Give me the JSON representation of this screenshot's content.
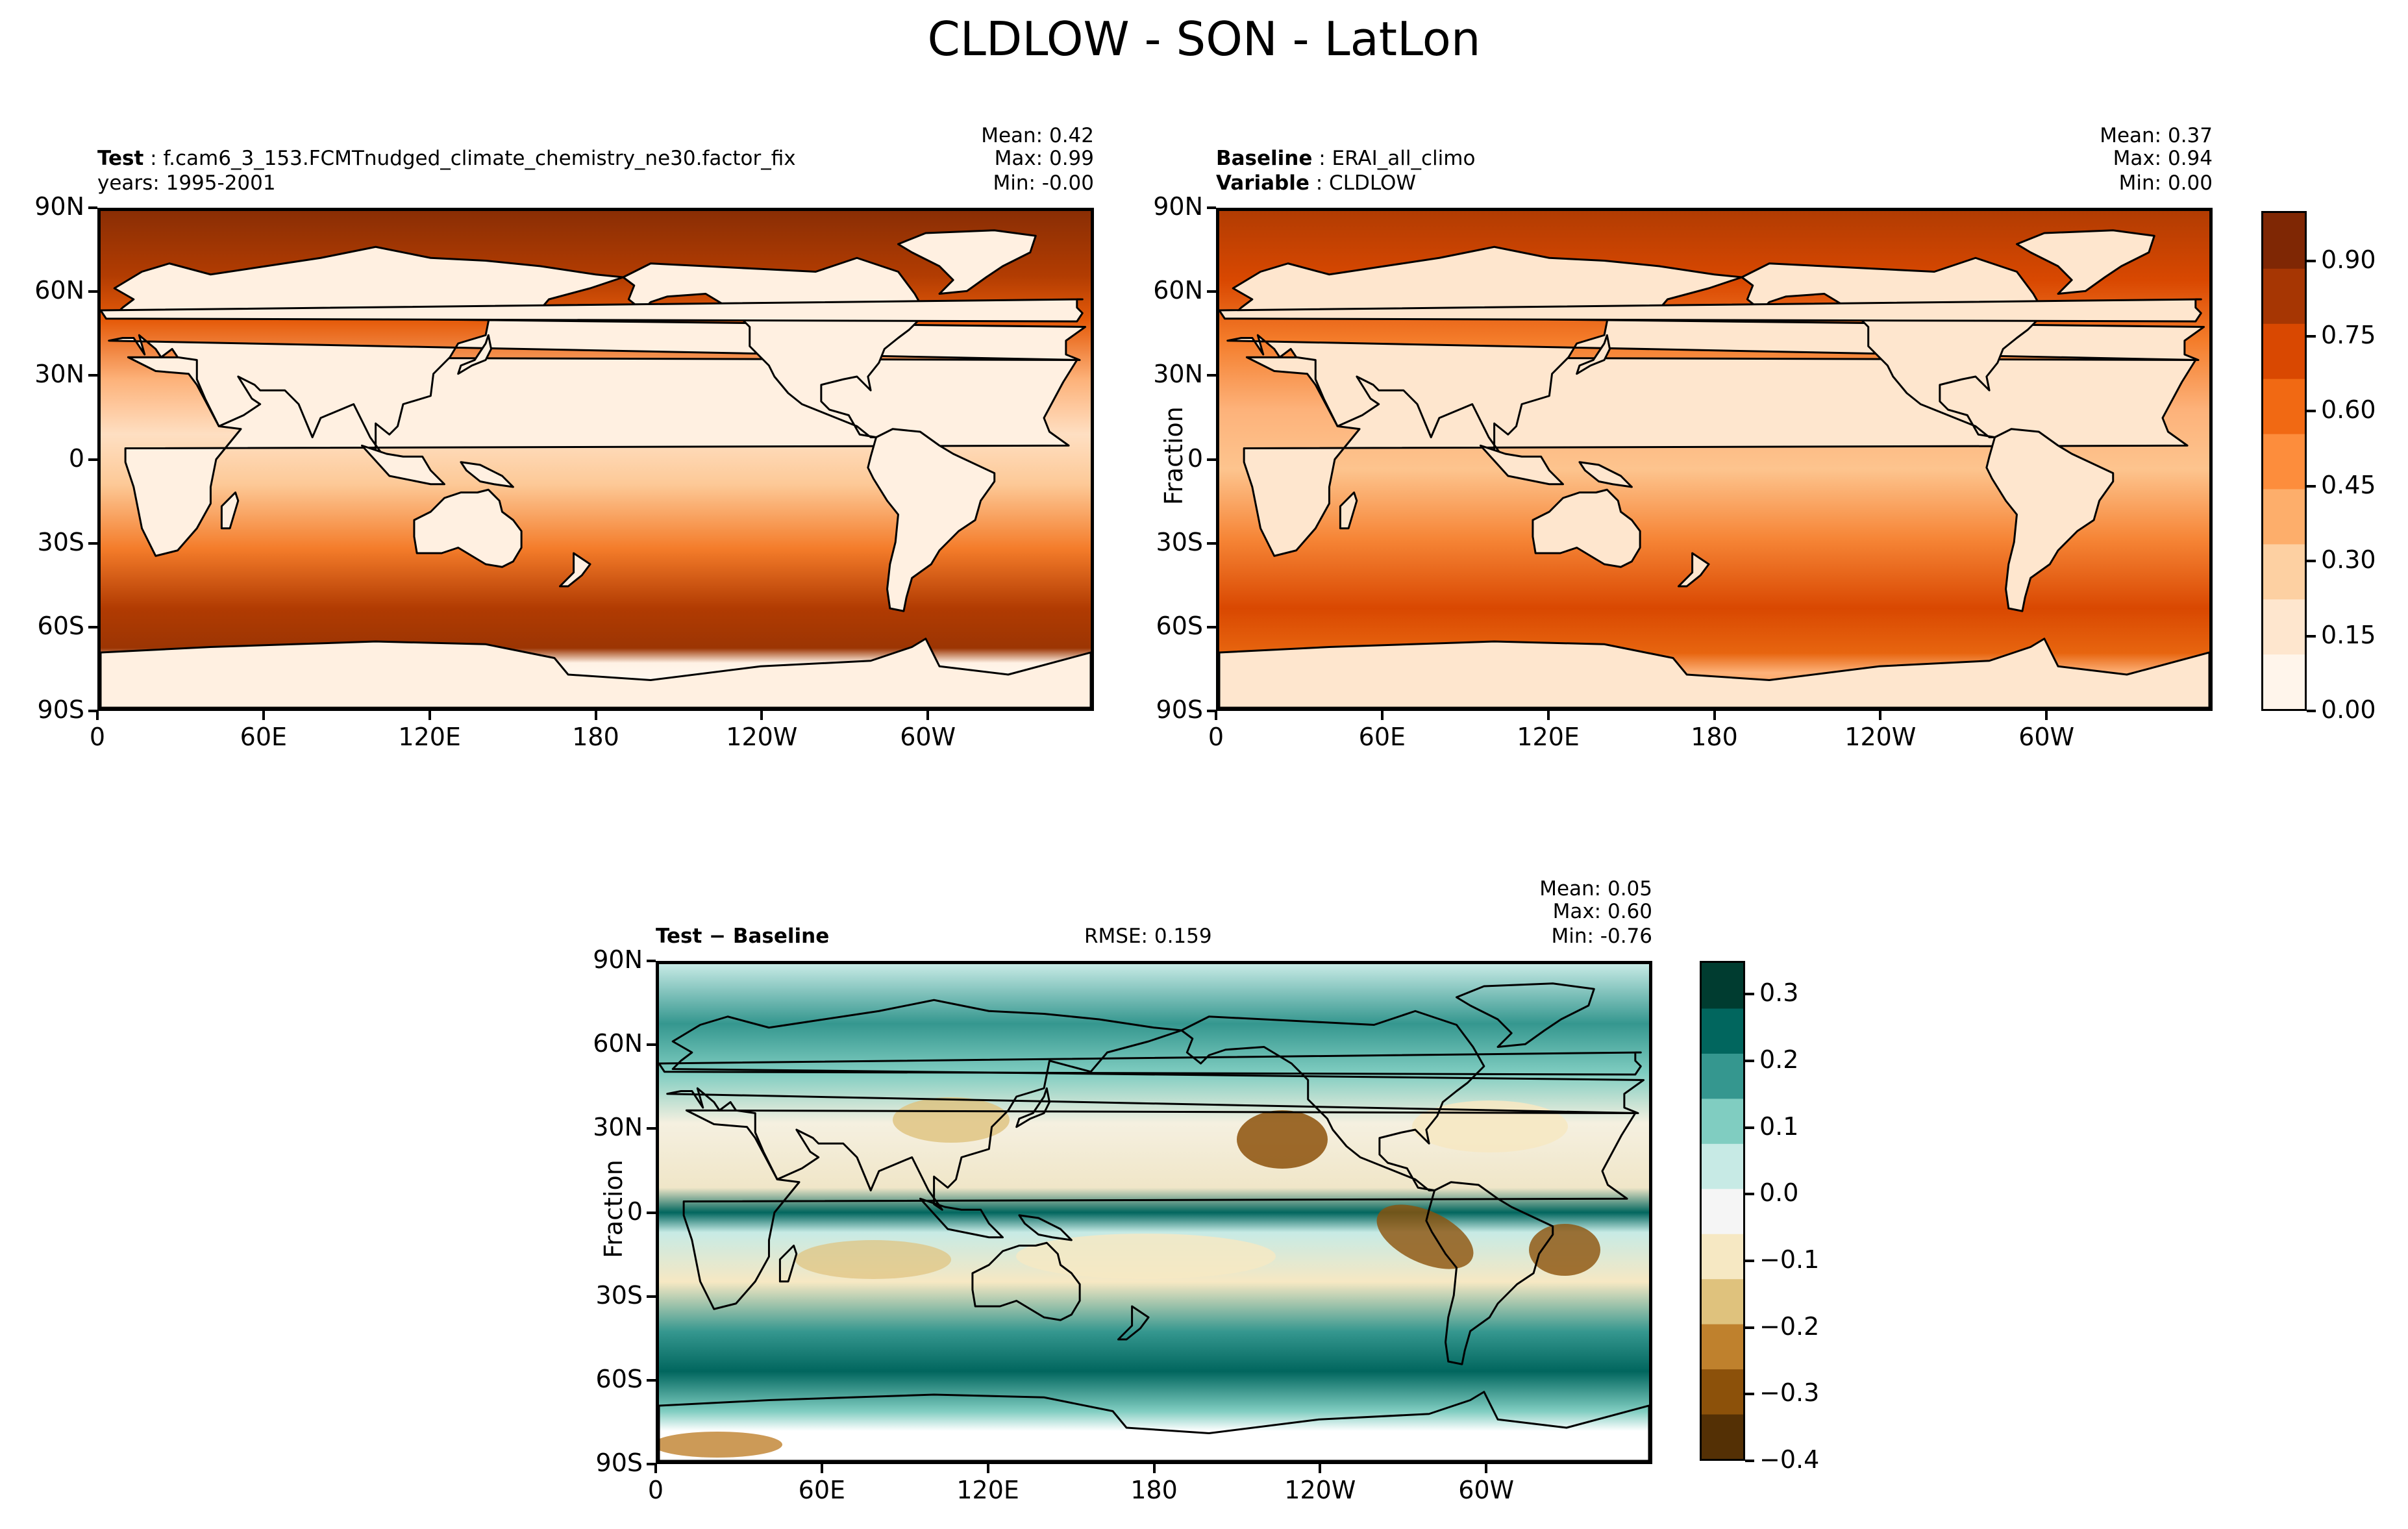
{
  "title": "CLDLOW - SON - LatLon",
  "panels": [
    {
      "id": "test",
      "left_label_1_key": "Test",
      "left_label_1_val": "f.cam6_3_153.FCMTnudged_climate_chemistry_ne30.factor_fix",
      "left_label_2": "years: 1995-2001",
      "stats": {
        "mean": "Mean:  0.42",
        "max": "Max:  0.99",
        "min": "Min: -0.00"
      },
      "ylabel": ""
    },
    {
      "id": "baseline",
      "left_label_1_key": "Baseline",
      "left_label_1_val": "ERAI_all_climo",
      "left_label_2_key": "Variable",
      "left_label_2_val": "CLDLOW",
      "stats": {
        "mean": "Mean:  0.37",
        "max": "Max:  0.94",
        "min": "Min:  0.00"
      },
      "ylabel": "Fraction"
    },
    {
      "id": "diff",
      "left_label_1": "Test − Baseline",
      "center_label": "RMSE: 0.159",
      "stats": {
        "mean": "Mean:  0.05",
        "max": "Max:  0.60",
        "min": "Min: -0.76"
      },
      "ylabel": "Fraction"
    }
  ],
  "axes": {
    "lat_ticks": [
      "90N",
      "60N",
      "30N",
      "0",
      "30S",
      "60S",
      "90S"
    ],
    "lon_ticks": [
      "0",
      "60E",
      "120E",
      "180",
      "120W",
      "60W"
    ]
  },
  "colorbar_seq": {
    "labels": [
      "0.90",
      "0.75",
      "0.60",
      "0.45",
      "0.30",
      "0.15",
      "0.00"
    ],
    "values": [
      0.9,
      0.75,
      0.6,
      0.45,
      0.3,
      0.15,
      0.0
    ],
    "range": [
      0,
      1.0
    ],
    "colors": [
      "#fff5eb",
      "#fee6ce",
      "#fdd0a2",
      "#fdae6b",
      "#fd8d3c",
      "#f16913",
      "#d94801",
      "#a63603",
      "#7f2704"
    ]
  },
  "colorbar_div": {
    "labels": [
      "0.3",
      "0.2",
      "0.1",
      "0.0",
      "−0.1",
      "−0.2",
      "−0.3",
      "−0.4"
    ],
    "values": [
      0.3,
      0.2,
      0.1,
      0.0,
      -0.1,
      -0.2,
      -0.3,
      -0.4
    ],
    "range": [
      -0.4,
      0.35
    ],
    "colors": [
      "#543005",
      "#8c510a",
      "#bf812d",
      "#dfc27d",
      "#f6e8c3",
      "#f5f5f5",
      "#c7eae5",
      "#80cdc1",
      "#35978f",
      "#01665e",
      "#003c30"
    ]
  },
  "chart_data": [
    {
      "type": "heatmap",
      "title": "",
      "variable": "CLDLOW",
      "season": "SON",
      "xlabel": "",
      "ylabel": "",
      "x_ticks": [
        "0",
        "60E",
        "120E",
        "180",
        "120W",
        "60W"
      ],
      "y_ticks": [
        "90N",
        "60N",
        "30N",
        "0",
        "30S",
        "60S",
        "90S"
      ],
      "colorbar_ticks": [
        0.0,
        0.15,
        0.3,
        0.45,
        0.6,
        0.75,
        0.9
      ],
      "value_range": [
        0,
        1.0
      ],
      "stats": {
        "mean": 0.42,
        "max": 0.99,
        "min": -0.0
      },
      "source": "Test: f.cam6_3_153.FCMTnudged_climate_chemistry_ne30.factor_fix, years: 1995-2001"
    },
    {
      "type": "heatmap",
      "title": "",
      "variable": "CLDLOW",
      "season": "SON",
      "xlabel": "",
      "ylabel": "Fraction",
      "x_ticks": [
        "0",
        "60E",
        "120E",
        "180",
        "120W",
        "60W"
      ],
      "y_ticks": [
        "90N",
        "60N",
        "30N",
        "0",
        "30S",
        "60S",
        "90S"
      ],
      "colorbar_ticks": [
        0.0,
        0.15,
        0.3,
        0.45,
        0.6,
        0.75,
        0.9
      ],
      "value_range": [
        0,
        1.0
      ],
      "stats": {
        "mean": 0.37,
        "max": 0.94,
        "min": 0.0
      },
      "source": "Baseline: ERAI_all_climo, Variable: CLDLOW"
    },
    {
      "type": "heatmap",
      "title": "",
      "variable": "CLDLOW",
      "season": "SON",
      "xlabel": "",
      "ylabel": "Fraction",
      "x_ticks": [
        "0",
        "60E",
        "120E",
        "180",
        "120W",
        "60W"
      ],
      "y_ticks": [
        "90N",
        "60N",
        "30N",
        "0",
        "30S",
        "60S",
        "90S"
      ],
      "colorbar_ticks": [
        -0.4,
        -0.3,
        -0.2,
        -0.1,
        0.0,
        0.1,
        0.2,
        0.3
      ],
      "value_range": [
        -0.4,
        0.35
      ],
      "stats": {
        "mean": 0.05,
        "max": 0.6,
        "min": -0.76
      },
      "rmse": 0.159,
      "source": "Test − Baseline"
    }
  ]
}
